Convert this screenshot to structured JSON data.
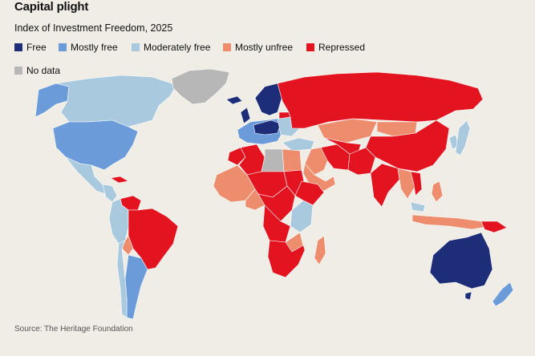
{
  "title": "Capital plight",
  "subtitle": "Index of Investment Freedom, 2025",
  "legend": [
    {
      "label": "Free",
      "color": "#1d2d78"
    },
    {
      "label": "Mostly free",
      "color": "#6b9bd8"
    },
    {
      "label": "Moderately free",
      "color": "#a9c9de"
    },
    {
      "label": "Mostly unfree",
      "color": "#ee8c6e"
    },
    {
      "label": "Repressed",
      "color": "#e3131f"
    },
    {
      "label": "No data",
      "color": "#b7b7b7"
    }
  ],
  "source": "Source: The Heritage Foundation"
}
